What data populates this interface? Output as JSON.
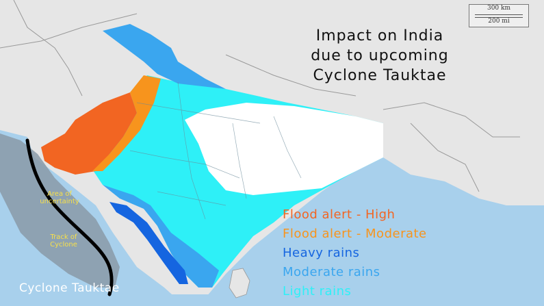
{
  "title": {
    "line1": "Impact on India",
    "line2": "due to upcoming",
    "line3": "Cyclone Tauktae"
  },
  "legend": [
    {
      "label": "Flood alert - High",
      "color": "#f26522"
    },
    {
      "label": "Flood alert - Moderate",
      "color": "#f7941d"
    },
    {
      "label": "Heavy rains",
      "color": "#1565e0"
    },
    {
      "label": "Moderate rains",
      "color": "#3aa6ef"
    },
    {
      "label": "Light rains",
      "color": "#2ef0f7"
    }
  ],
  "annotations": {
    "area_line1": "Area of",
    "area_line2": "uncertainty",
    "track_line1": "Track of",
    "track_line2": "Cyclone",
    "cyclone_name": "Cyclone Tauktae"
  },
  "scale": {
    "top": "300 km",
    "bottom": "200 mi"
  },
  "colors": {
    "sea": "#a8d0ec",
    "land": "#e6e6e6",
    "india_unaffected": "#ffffff",
    "uncertainty_area": "#8a9aa8",
    "track": "#000000"
  }
}
